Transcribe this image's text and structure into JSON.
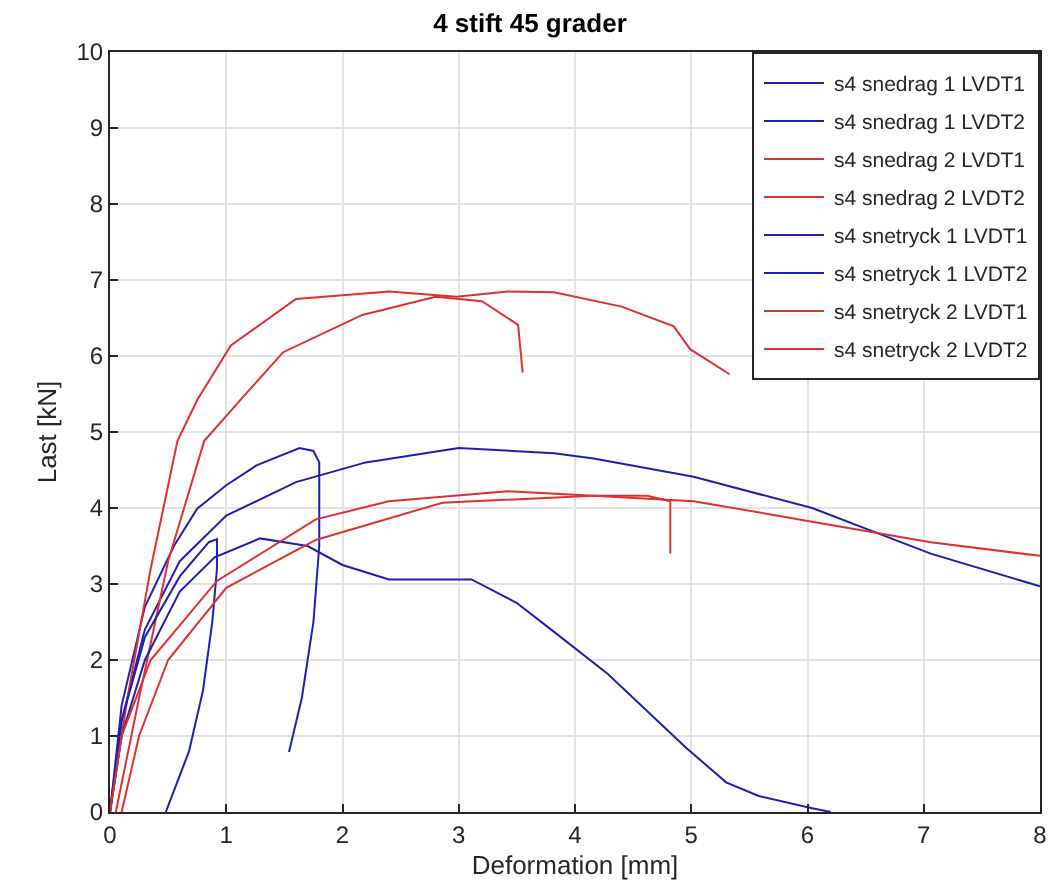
{
  "chart_data": {
    "type": "line",
    "title": "4 stift 45 grader",
    "xlabel": "Deformation [mm]",
    "ylabel": "Last [kN]",
    "xlim": [
      0,
      8
    ],
    "ylim": [
      0,
      10
    ],
    "xticks": [
      0,
      1,
      2,
      3,
      4,
      5,
      6,
      7,
      8
    ],
    "yticks": [
      0,
      1,
      2,
      3,
      4,
      5,
      6,
      7,
      8,
      9,
      10
    ],
    "grid": true,
    "legend": "top right",
    "line_style": "solid",
    "marker": "none",
    "series": [
      {
        "name": "s4 snedrag 1 LVDT1",
        "color": "#2020b0",
        "x": [
          0,
          0.1,
          0.3,
          0.6,
          1.0,
          1.6,
          2.2,
          3.0,
          3.82,
          4.16,
          5.02,
          6.04,
          7.06,
          8
        ],
        "values": [
          0,
          1.2,
          2.4,
          3.3,
          3.9,
          4.34,
          4.6,
          4.79,
          4.72,
          4.65,
          4.41,
          4.0,
          3.4,
          2.97
        ]
      },
      {
        "name": "s4 snedrag 1 LVDT2",
        "color": "#2020b0",
        "x": [
          0,
          0.1,
          0.3,
          0.55,
          0.75,
          1.0,
          1.26,
          1.63,
          1.75,
          1.8,
          1.8,
          1.75,
          1.65,
          1.54
        ],
        "values": [
          0,
          1.4,
          2.7,
          3.5,
          3.99,
          4.3,
          4.56,
          4.79,
          4.75,
          4.6,
          3.5,
          2.5,
          1.5,
          0.79
        ]
      },
      {
        "name": "s4 snedrag 2 LVDT1",
        "color": "#e03030",
        "x": [
          0,
          0.15,
          0.35,
          0.58,
          0.75,
          1.04,
          1.6,
          2.4,
          2.98,
          3.42,
          3.82,
          4.4,
          4.85,
          4.99,
          5.33
        ],
        "values": [
          0,
          1.5,
          3.2,
          4.88,
          5.42,
          6.14,
          6.75,
          6.85,
          6.78,
          6.85,
          6.84,
          6.65,
          6.39,
          6.09,
          5.76
        ]
      },
      {
        "name": "s4 snedrag 2 LVDT2",
        "color": "#e03030",
        "x": [
          0.05,
          0.25,
          0.5,
          0.81,
          1.12,
          1.49,
          2.17,
          2.8,
          3.2,
          3.51,
          3.55
        ],
        "values": [
          0,
          1.5,
          3.3,
          4.88,
          5.42,
          6.05,
          6.54,
          6.78,
          6.72,
          6.41,
          5.78
        ]
      },
      {
        "name": "s4 snetryck 1 LVDT1",
        "color": "#2020b0",
        "x": [
          0,
          0.1,
          0.3,
          0.6,
          0.85,
          0.92,
          0.92,
          0.88,
          0.8,
          0.68,
          0.48
        ],
        "values": [
          0,
          1.2,
          2.3,
          3.1,
          3.55,
          3.59,
          3.2,
          2.5,
          1.6,
          0.8,
          0
        ]
      },
      {
        "name": "s4 snetryck 1 LVDT2",
        "color": "#2020b0",
        "x": [
          0,
          0.1,
          0.3,
          0.6,
          0.9,
          1.29,
          1.7,
          2.0,
          2.4,
          3.11,
          3.5,
          3.82,
          4.28,
          4.96,
          5.3,
          5.58,
          6.04,
          6.2
        ],
        "values": [
          0,
          1.0,
          2.0,
          2.9,
          3.35,
          3.6,
          3.5,
          3.25,
          3.06,
          3.06,
          2.75,
          2.37,
          1.82,
          0.84,
          0.39,
          0.21,
          0.05,
          0
        ]
      },
      {
        "name": "s4 snetryck 2 LVDT1",
        "color": "#e03030",
        "x": [
          0,
          0.1,
          0.35,
          0.92,
          1.77,
          2.4,
          3.42,
          4.16,
          4.62,
          4.82,
          4.82
        ],
        "values": [
          0,
          1.0,
          2.0,
          3.04,
          3.85,
          4.09,
          4.22,
          4.16,
          4.16,
          4.09,
          3.4
        ]
      },
      {
        "name": "s4 snetryck 2 LVDT2",
        "color": "#e03030",
        "x": [
          0.1,
          0.25,
          0.5,
          1.0,
          1.77,
          2.86,
          4.16,
          5.02,
          6.04,
          7.06,
          8
        ],
        "values": [
          0,
          1.0,
          2.0,
          2.95,
          3.58,
          4.07,
          4.16,
          4.09,
          3.82,
          3.55,
          3.37
        ]
      }
    ]
  }
}
